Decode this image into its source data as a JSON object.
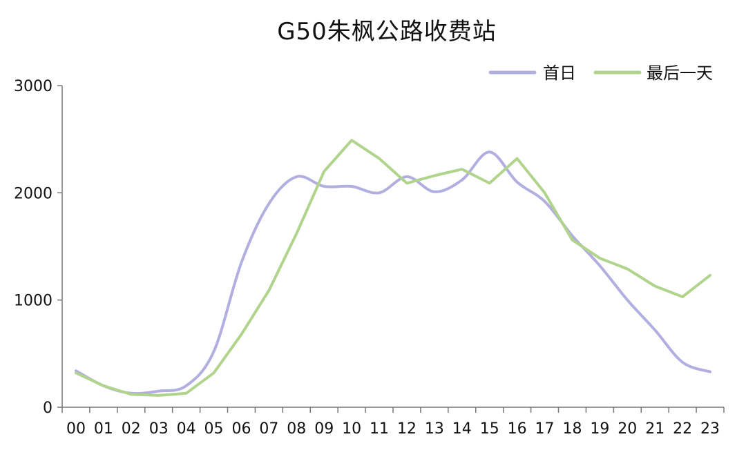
{
  "chart_data": {
    "type": "line",
    "title": "G50朱枫公路收费站",
    "xlabel": "",
    "ylabel": "",
    "categories": [
      "00",
      "01",
      "02",
      "03",
      "04",
      "05",
      "06",
      "07",
      "08",
      "09",
      "10",
      "11",
      "12",
      "13",
      "14",
      "15",
      "16",
      "17",
      "18",
      "19",
      "20",
      "21",
      "22",
      "23"
    ],
    "ylim": [
      0,
      3000
    ],
    "yticks": [
      0,
      1000,
      2000,
      3000
    ],
    "grid": false,
    "legend_position": "top-right",
    "series": [
      {
        "name": "首日",
        "color": "#b3aee0",
        "smooth": true,
        "values": [
          340,
          200,
          130,
          150,
          200,
          520,
          1350,
          1900,
          2150,
          2060,
          2060,
          2000,
          2150,
          2010,
          2120,
          2380,
          2100,
          1920,
          1600,
          1320,
          1000,
          720,
          420,
          330
        ]
      },
      {
        "name": "最后一天",
        "color": "#b0d48c",
        "smooth": false,
        "values": [
          320,
          200,
          120,
          110,
          130,
          320,
          680,
          1090,
          1620,
          2200,
          2490,
          2320,
          2090,
          2160,
          2220,
          2090,
          2320,
          2000,
          1560,
          1390,
          1290,
          1130,
          1030,
          1230
        ]
      }
    ]
  }
}
